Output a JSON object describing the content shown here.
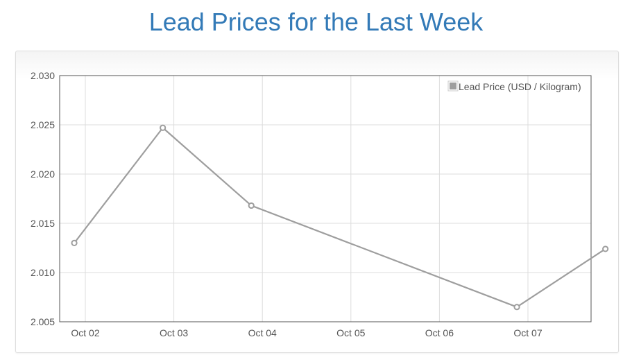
{
  "page": {
    "title": "Lead Prices for the Last Week"
  },
  "colors": {
    "title": "#337ab7",
    "series": "#9e9e9e",
    "grid": "#dcdcdc",
    "axis": "#555555"
  },
  "chart_data": {
    "type": "line",
    "title": "Lead Prices for the Last Week",
    "xlabel": "",
    "ylabel": "",
    "x": [
      "Oct 01 21:00",
      "Oct 02 21:00",
      "Oct 03 21:00",
      "Oct 06 21:00",
      "Oct 07 21:00"
    ],
    "xticks": [
      "Oct 02",
      "Oct 03",
      "Oct 04",
      "Oct 05",
      "Oct 06",
      "Oct 07"
    ],
    "yticks": [
      "2.030",
      "2.025",
      "2.020",
      "2.015",
      "2.010",
      "2.005"
    ],
    "ylim": [
      2.005,
      2.03
    ],
    "series": [
      {
        "name": "Lead Price (USD / Kilogram)",
        "values": [
          2.013,
          2.0247,
          2.0168,
          2.0065,
          2.0124
        ]
      }
    ],
    "grid": true,
    "legend": "top-right"
  }
}
